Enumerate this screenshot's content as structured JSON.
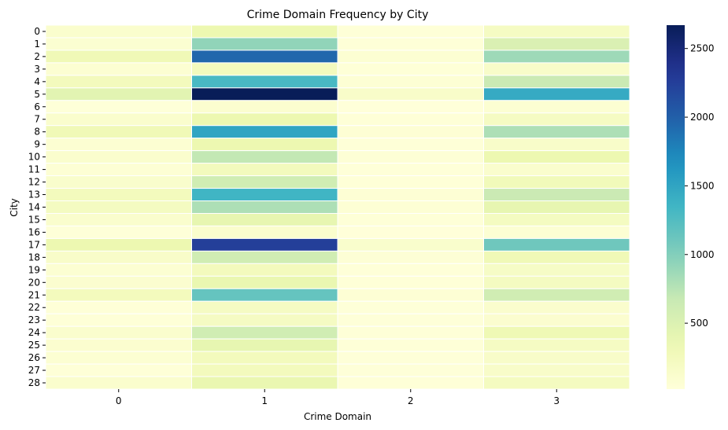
{
  "chart_data": {
    "type": "heatmap",
    "title": "Crime Domain Frequency by City",
    "xlabel": "Crime Domain",
    "ylabel": "City",
    "x_categories": [
      "0",
      "1",
      "2",
      "3"
    ],
    "y_categories": [
      "0",
      "1",
      "2",
      "3",
      "4",
      "5",
      "6",
      "7",
      "8",
      "9",
      "10",
      "11",
      "12",
      "13",
      "14",
      "15",
      "16",
      "17",
      "18",
      "19",
      "20",
      "21",
      "22",
      "23",
      "24",
      "25",
      "26",
      "27",
      "28"
    ],
    "values": [
      [
        120,
        350,
        40,
        200
      ],
      [
        90,
        930,
        40,
        520
      ],
      [
        300,
        1950,
        80,
        870
      ],
      [
        80,
        250,
        40,
        150
      ],
      [
        250,
        1300,
        60,
        650
      ],
      [
        450,
        2670,
        150,
        1450
      ],
      [
        30,
        100,
        20,
        80
      ],
      [
        120,
        350,
        40,
        200
      ],
      [
        300,
        1500,
        60,
        800
      ],
      [
        80,
        350,
        40,
        150
      ],
      [
        120,
        700,
        50,
        350
      ],
      [
        60,
        250,
        30,
        120
      ],
      [
        130,
        600,
        40,
        280
      ],
      [
        250,
        1350,
        60,
        650
      ],
      [
        220,
        800,
        60,
        400
      ],
      [
        120,
        400,
        40,
        220
      ],
      [
        30,
        120,
        20,
        70
      ],
      [
        350,
        2250,
        130,
        1100
      ],
      [
        150,
        600,
        50,
        300
      ],
      [
        80,
        250,
        30,
        180
      ],
      [
        100,
        380,
        40,
        220
      ],
      [
        250,
        1150,
        60,
        600
      ],
      [
        40,
        200,
        30,
        120
      ],
      [
        40,
        200,
        30,
        100
      ],
      [
        120,
        600,
        40,
        320
      ],
      [
        100,
        400,
        40,
        200
      ],
      [
        80,
        250,
        30,
        150
      ],
      [
        40,
        250,
        30,
        150
      ],
      [
        120,
        380,
        40,
        230
      ]
    ],
    "vmin": 20,
    "vmax": 2670,
    "colormap": "YlGnBu",
    "colorbar_ticks": [
      500,
      1000,
      1500,
      2000,
      2500
    ],
    "grid_lines": "white"
  }
}
